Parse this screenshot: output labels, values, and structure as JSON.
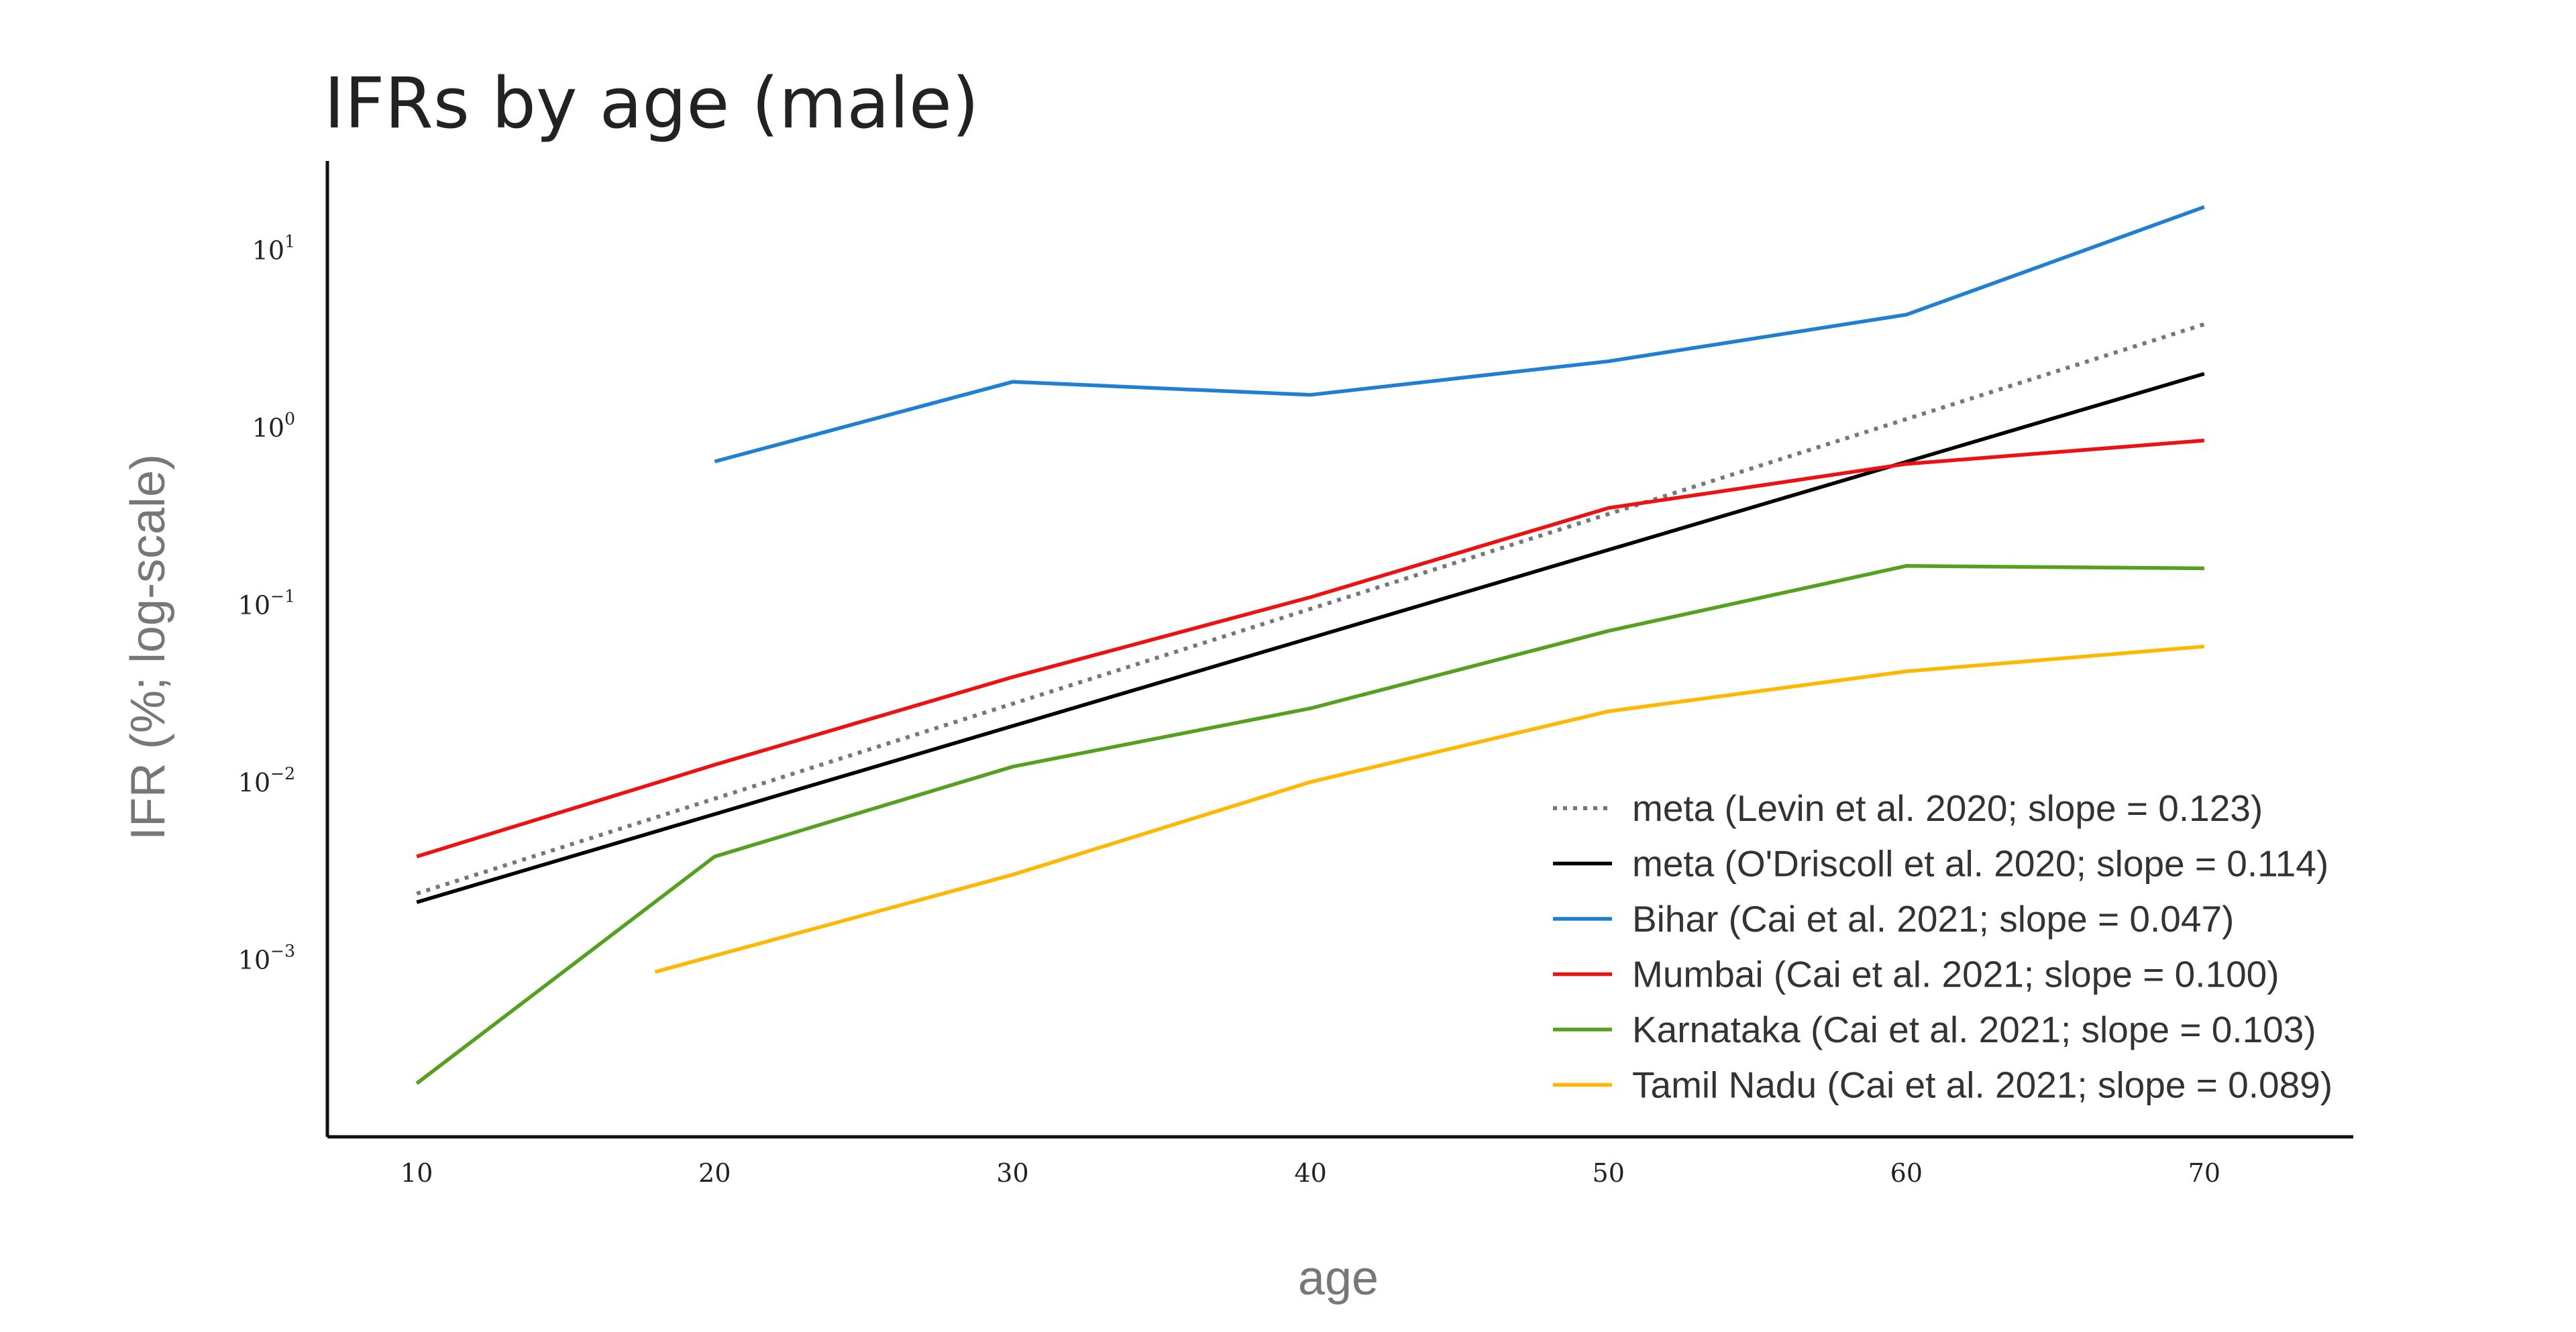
{
  "chart_data": {
    "type": "line",
    "title": "IFRs by age (male)",
    "xlabel": "age",
    "ylabel": "IFR (%; log-scale)",
    "xlim": [
      7,
      75
    ],
    "ylim_log10": [
      -4.0,
      1.5
    ],
    "y_scale": "log",
    "grid": false,
    "legend_position": "lower-right",
    "x_ticks": [
      {
        "value": 10,
        "label": "10"
      },
      {
        "value": 20,
        "label": "20"
      },
      {
        "value": 30,
        "label": "30"
      },
      {
        "value": 40,
        "label": "40"
      },
      {
        "value": 50,
        "label": "50"
      },
      {
        "value": 60,
        "label": "60"
      },
      {
        "value": 70,
        "label": "70"
      }
    ],
    "y_ticks": [
      {
        "exp": 1,
        "base": "10",
        "sup": "1"
      },
      {
        "exp": 0,
        "base": "10",
        "sup": "0"
      },
      {
        "exp": -1,
        "base": "10",
        "sup": "−1"
      },
      {
        "exp": -2,
        "base": "10",
        "sup": "−2"
      },
      {
        "exp": -3,
        "base": "10",
        "sup": "−3"
      }
    ],
    "series": [
      {
        "name": "meta (Levin et al. 2020; slope = 0.123)",
        "color": "#777777",
        "dash": "dotted",
        "x": [
          10,
          70
        ],
        "y": [
          0.00235,
          3.8
        ]
      },
      {
        "name": "meta (O'Driscoll et al. 2020; slope = 0.114)",
        "color": "#000000",
        "dash": "solid",
        "x": [
          10,
          70
        ],
        "y": [
          0.0021,
          2.0
        ]
      },
      {
        "name": "Bihar (Cai et al. 2021; slope = 0.047)",
        "color": "#1f7fd4",
        "dash": "solid",
        "x": [
          20,
          30,
          40,
          50,
          60,
          70
        ],
        "y": [
          0.64,
          1.8,
          1.52,
          2.35,
          4.3,
          17.4
        ]
      },
      {
        "name": "Mumbai (Cai et al. 2021; slope = 0.100)",
        "color": "#ee1111",
        "dash": "solid",
        "x": [
          10,
          20,
          30,
          40,
          50,
          60,
          70
        ],
        "y": [
          0.0038,
          0.0125,
          0.039,
          0.11,
          0.35,
          0.62,
          0.84
        ]
      },
      {
        "name": "Karnataka (Cai et al. 2021; slope = 0.103)",
        "color": "#55a020",
        "dash": "solid",
        "x": [
          10,
          20,
          30,
          40,
          50,
          60,
          70
        ],
        "y": [
          0.0002,
          0.0038,
          0.0122,
          0.026,
          0.071,
          0.165,
          0.16
        ]
      },
      {
        "name": "Tamil Nadu (Cai et al. 2021; slope = 0.089)",
        "color": "#ffb700",
        "dash": "solid",
        "x": [
          18,
          30,
          40,
          50,
          60,
          70
        ],
        "y": [
          0.00085,
          0.003,
          0.01,
          0.025,
          0.042,
          0.058
        ]
      }
    ]
  }
}
